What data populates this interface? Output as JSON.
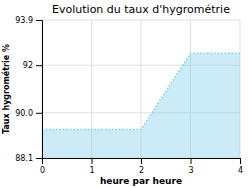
{
  "chart_data": {
    "type": "area",
    "title": "Evolution du taux d'hygrométrie",
    "xlabel": "heure par heure",
    "ylabel": "Taux hygrométrie %",
    "x": [
      0,
      2,
      3,
      4
    ],
    "values": [
      89.3,
      89.3,
      92.5,
      92.5
    ],
    "color": "#7dd0e8",
    "line_style": "dotted",
    "xlim": [
      0,
      4
    ],
    "ylim": [
      88.1,
      93.9
    ],
    "xticks": [
      0,
      1,
      2,
      3,
      4
    ],
    "yticks": [
      88.1,
      {
        "value": 90,
        "label": "90.0"
      },
      92,
      93.9
    ],
    "grid": true
  }
}
